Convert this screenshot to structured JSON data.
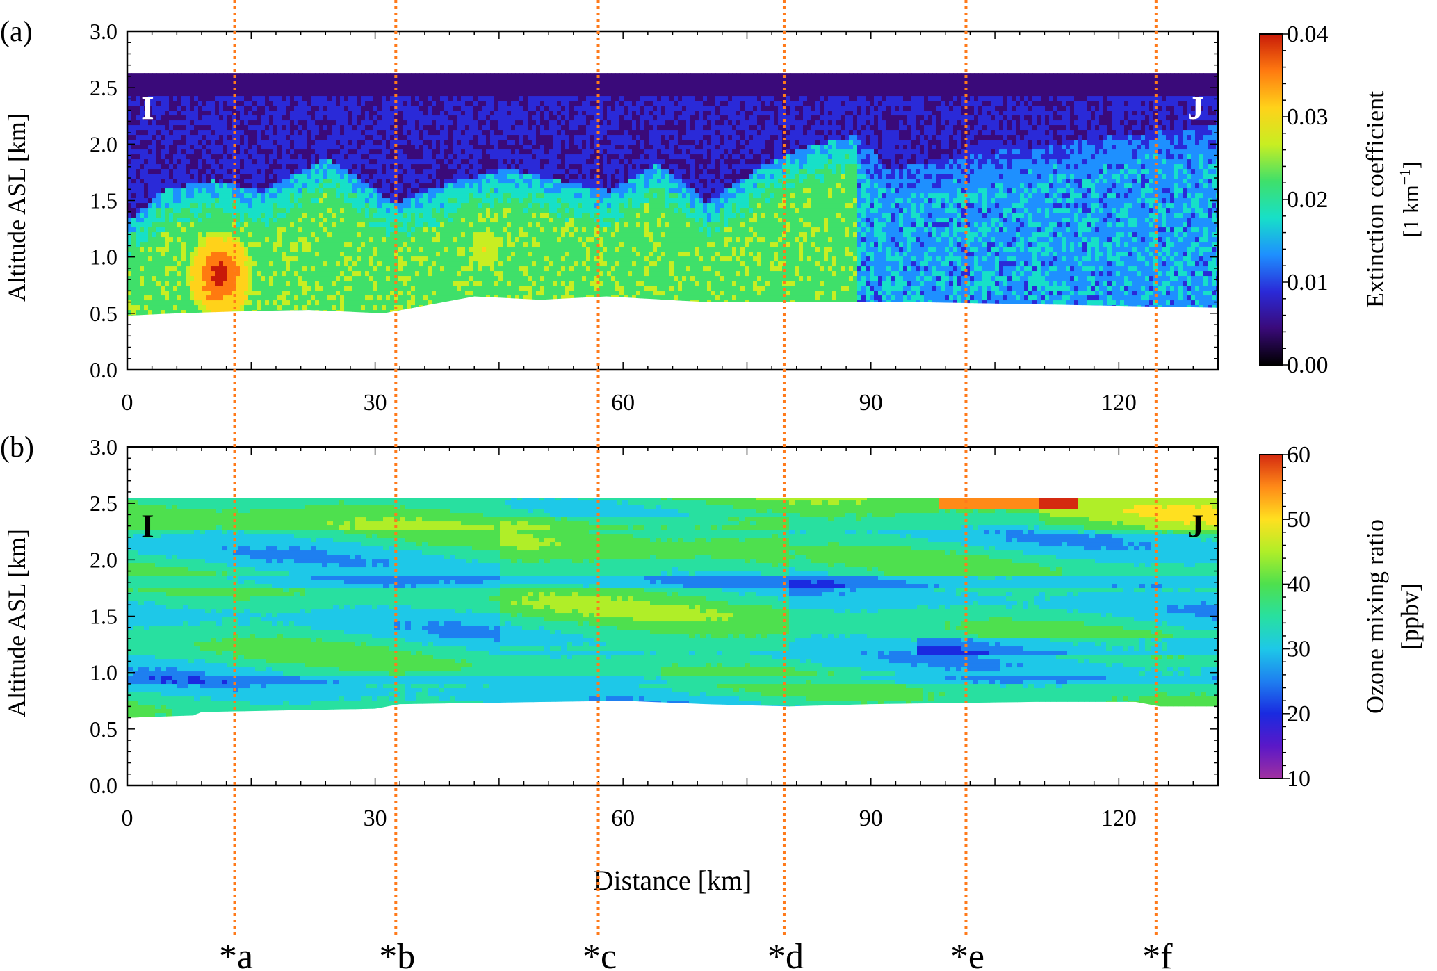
{
  "chart_data": [
    {
      "type": "heatmap",
      "panel_label": "(a)",
      "ylabel": "Altitude ASL [km]",
      "xlim": [
        0,
        132
      ],
      "ylim": [
        0,
        3
      ],
      "x_ticks": [
        0,
        30,
        60,
        90,
        120
      ],
      "y_ticks": [
        "0.0",
        "0.5",
        "1.0",
        "1.5",
        "2.0",
        "2.5",
        "3.0"
      ],
      "corner_labels": [
        "I",
        "J"
      ],
      "colorbar": {
        "label_line1": "Extinction coefficient",
        "label_unit_base": "[1 km",
        "label_unit_sup": "−1",
        "label_unit_end": "]",
        "range": [
          0,
          0.04
        ],
        "ticks": [
          "0.00",
          "0.01",
          "0.02",
          "0.03",
          "0.04"
        ],
        "colors": [
          "#000000",
          "#3a0a7a",
          "#2a2ad8",
          "#1e90ff",
          "#17e0c8",
          "#3fe06a",
          "#c8ee22",
          "#ffd21a",
          "#ff7a10",
          "#c81a08"
        ]
      },
      "field": {
        "top_km": 2.63,
        "bottom_profile": [
          [
            0,
            0.48
          ],
          [
            6,
            0.5
          ],
          [
            15,
            0.52
          ],
          [
            22,
            0.53
          ],
          [
            31,
            0.5
          ],
          [
            42,
            0.65
          ],
          [
            50,
            0.62
          ],
          [
            58,
            0.65
          ],
          [
            70,
            0.6
          ],
          [
            78,
            0.6
          ],
          [
            85,
            0.6
          ],
          [
            95,
            0.6
          ],
          [
            110,
            0.58
          ],
          [
            132,
            0.55
          ]
        ],
        "plume_tops": [
          [
            0,
            1.35
          ],
          [
            4,
            1.6
          ],
          [
            10,
            1.7
          ],
          [
            16,
            1.6
          ],
          [
            24,
            1.9
          ],
          [
            32,
            1.5
          ],
          [
            40,
            1.7
          ],
          [
            46,
            1.8
          ],
          [
            52,
            1.7
          ],
          [
            58,
            1.6
          ],
          [
            64,
            1.85
          ],
          [
            70,
            1.5
          ],
          [
            76,
            1.8
          ],
          [
            82,
            2.0
          ],
          [
            88,
            2.1
          ],
          [
            92,
            1.8
          ],
          [
            100,
            1.9
          ],
          [
            110,
            2.0
          ],
          [
            120,
            2.1
          ],
          [
            132,
            2.2
          ]
        ],
        "hotspots": [
          {
            "x": 11,
            "y": 0.85,
            "value": 0.04
          },
          {
            "x": 43,
            "y": 1.1,
            "value": 0.028
          }
        ]
      }
    },
    {
      "type": "heatmap",
      "panel_label": "(b)",
      "ylabel": "Altitude ASL [km]",
      "xlabel": "Distance [km]",
      "xlim": [
        0,
        132
      ],
      "ylim": [
        0,
        3
      ],
      "x_ticks": [
        0,
        30,
        60,
        90,
        120
      ],
      "y_ticks": [
        "0.0",
        "0.5",
        "1.0",
        "1.5",
        "2.0",
        "2.5",
        "3.0"
      ],
      "corner_labels": [
        "I",
        "J"
      ],
      "colorbar": {
        "label_line1": "Ozone mixing ratio",
        "label_line2": "[ppbv]",
        "range": [
          10,
          60
        ],
        "ticks": [
          "10",
          "20",
          "30",
          "40",
          "50",
          "60"
        ],
        "colors": [
          "#a030a0",
          "#5a18c8",
          "#1a2ae0",
          "#1e7ff0",
          "#1ec8e8",
          "#28e0a0",
          "#4ee04e",
          "#b0ee28",
          "#ffe020",
          "#ff8a18",
          "#d42a10"
        ]
      },
      "field": {
        "top_km": 2.55,
        "bottom_profile": [
          [
            0,
            0.6
          ],
          [
            8,
            0.62
          ],
          [
            9,
            0.65
          ],
          [
            30,
            0.68
          ],
          [
            33,
            0.72
          ],
          [
            60,
            0.75
          ],
          [
            70,
            0.72
          ],
          [
            80,
            0.7
          ],
          [
            90,
            0.72
          ],
          [
            110,
            0.74
          ],
          [
            122,
            0.74
          ],
          [
            125,
            0.7
          ],
          [
            132,
            0.7
          ]
        ]
      }
    }
  ],
  "markers": {
    "labels": [
      "*a",
      "*b",
      "*c",
      "*d",
      "*e",
      "*f"
    ],
    "x_km": [
      13,
      32.5,
      57,
      79.5,
      101.5,
      124.5
    ],
    "color": "#ff7a1a"
  }
}
